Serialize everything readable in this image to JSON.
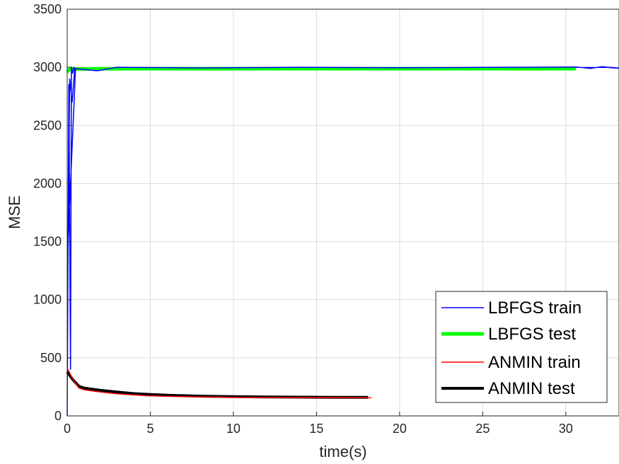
{
  "chart_data": {
    "type": "line",
    "xlabel": "time(s)",
    "ylabel": "MSE",
    "xlim": [
      0,
      33.2
    ],
    "ylim": [
      0,
      3500
    ],
    "xticks": [
      0,
      5,
      10,
      15,
      20,
      25,
      30
    ],
    "yticks": [
      0,
      500,
      1000,
      1500,
      2000,
      2500,
      3000,
      3500
    ],
    "grid": true,
    "legend_position": "bottom-right",
    "series": [
      {
        "name": "LBFGS train",
        "color": "#0000ff",
        "x": [
          0,
          0.1,
          0.2,
          0.25,
          0.32,
          0.4,
          0.5,
          0.05,
          0.15,
          0.3,
          0.45,
          1.8,
          3.0,
          8.0,
          14.0,
          20.0,
          26.0,
          30.6,
          31.5,
          32.2,
          32.8,
          33.2,
          32.6,
          31.2,
          30.6
        ],
        "y": [
          0,
          2850,
          400,
          3000,
          2950,
          3000,
          2980,
          1500,
          2900,
          2700,
          2990,
          2970,
          3000,
          2995,
          3000,
          2996,
          3000,
          3002,
          2990,
          3005,
          2995,
          2993,
          3000,
          2998,
          3000
        ]
      },
      {
        "name": "LBFGS test",
        "color": "#00ff00",
        "x": [
          0,
          0.2,
          0.4,
          2,
          5,
          10,
          15,
          20,
          25,
          30.6
        ],
        "y": [
          2960,
          2990,
          2985,
          2987,
          2988,
          2988,
          2988,
          2988,
          2988,
          2988
        ]
      },
      {
        "name": "ANMIN train",
        "color": "#ff0000",
        "x": [
          0,
          0.3,
          0.7,
          1,
          2,
          3,
          4,
          5,
          6,
          8,
          10,
          12,
          14,
          16,
          18,
          18.3
        ],
        "y": [
          410,
          330,
          240,
          225,
          205,
          190,
          180,
          173,
          168,
          163,
          160,
          158,
          157,
          157,
          156,
          156
        ]
      },
      {
        "name": "ANMIN test",
        "color": "#000000",
        "x": [
          0,
          0.3,
          0.7,
          1,
          2,
          3,
          4,
          5,
          6,
          8,
          10,
          12,
          14,
          16,
          18.1
        ],
        "y": [
          380,
          320,
          255,
          240,
          220,
          205,
          192,
          184,
          178,
          170,
          166,
          163,
          161,
          160,
          160
        ]
      }
    ]
  }
}
